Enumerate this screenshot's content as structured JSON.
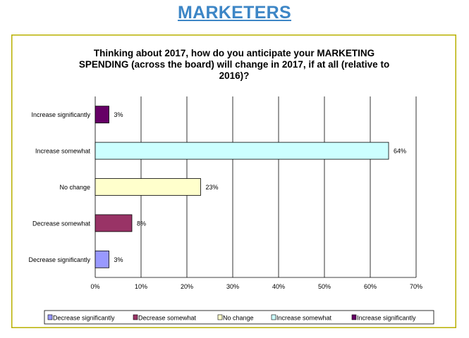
{
  "page_heading": "MARKETERS",
  "chart_data": {
    "type": "bar",
    "orientation": "horizontal",
    "title": "Thinking about 2017, how do you anticipate your MARKETING SPENDING (across the board) will change in 2017, if at all (relative to 2016)?",
    "title_lines": [
      "Thinking about 2017, how do you anticipate your MARKETING",
      "SPENDING (across the board) will change in 2017, if at all (relative to",
      "2016)?"
    ],
    "categories": [
      "Increase significantly",
      "Increase somewhat",
      "No change",
      "Decrease somewhat",
      "Decrease significantly"
    ],
    "values": [
      3,
      64,
      23,
      8,
      3
    ],
    "value_labels": [
      "3%",
      "64%",
      "23%",
      "8%",
      "3%"
    ],
    "colors": [
      "#660066",
      "#ccffff",
      "#ffffcc",
      "#993366",
      "#9999ff"
    ],
    "xlim": [
      0,
      70
    ],
    "x_ticks": [
      0,
      10,
      20,
      30,
      40,
      50,
      60,
      70
    ],
    "x_tick_labels": [
      "0%",
      "10%",
      "20%",
      "30%",
      "40%",
      "50%",
      "60%",
      "70%"
    ],
    "grid": true,
    "legend_position": "bottom",
    "legend": [
      {
        "label": "Decrease significantly",
        "color": "#9999ff"
      },
      {
        "label": "Decrease somewhat",
        "color": "#993366"
      },
      {
        "label": "No change",
        "color": "#ffffcc"
      },
      {
        "label": "Increase somewhat",
        "color": "#ccffff"
      },
      {
        "label": "Increase significantly",
        "color": "#660066"
      }
    ],
    "frame_color": "#b8b000",
    "heading_color": "#3d86c6"
  }
}
